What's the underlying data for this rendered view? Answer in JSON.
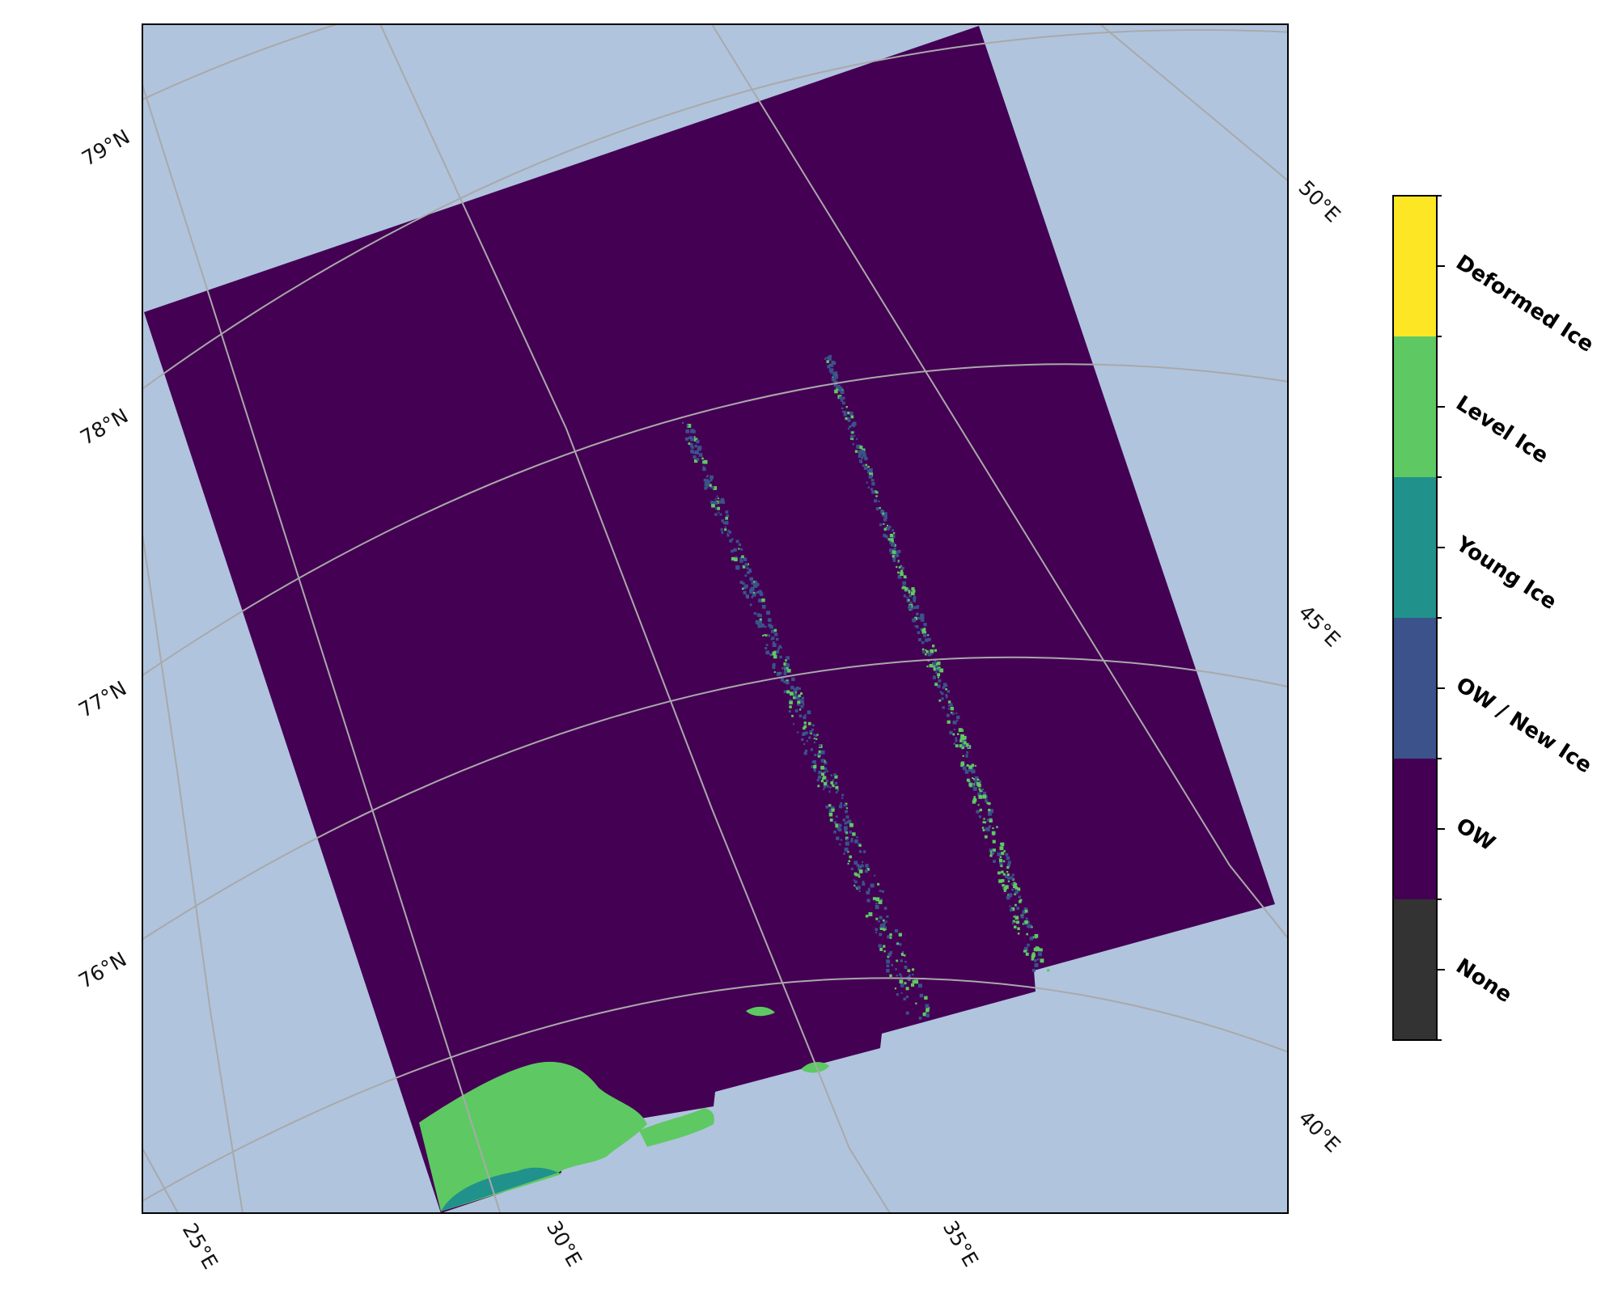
{
  "map": {
    "background_color": "#b0c4de",
    "gridline_color": "#a9a9a9",
    "latitude_labels": [
      "79°N",
      "78°N",
      "77°N",
      "76°N"
    ],
    "longitude_labels_bottom": [
      "25°E",
      "30°E",
      "35°E"
    ],
    "longitude_labels_right": [
      "50°E",
      "45°E",
      "40°E"
    ]
  },
  "colorbar": {
    "classes": [
      {
        "label": "Deformed Ice",
        "color": "#fde725"
      },
      {
        "label": "Level Ice",
        "color": "#5ec962"
      },
      {
        "label": "Young Ice",
        "color": "#21918c"
      },
      {
        "label": "OW / New Ice",
        "color": "#3b528b"
      },
      {
        "label": "OW",
        "color": "#440154"
      },
      {
        "label": "None",
        "color": "#333333"
      }
    ]
  }
}
